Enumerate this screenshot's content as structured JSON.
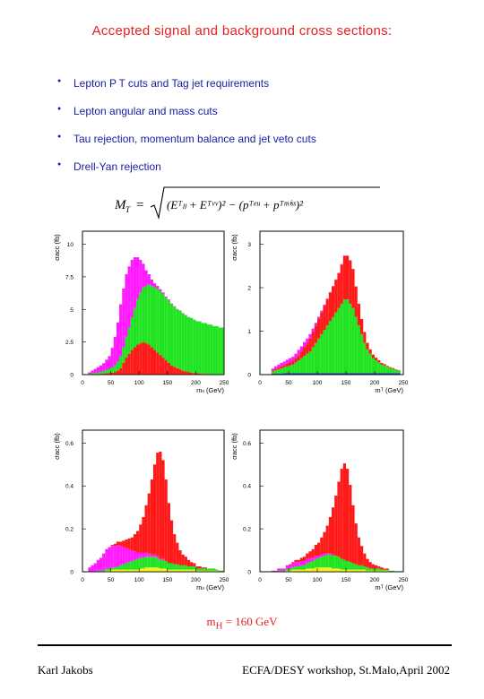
{
  "title": "Accepted signal and background cross sections:",
  "bullets": [
    "Lepton P T cuts and Tag jet requirements",
    "Lepton angular and mass cuts",
    "Tau rejection, momentum balance and jet veto cuts",
    "Drell-Yan rejection"
  ],
  "formula": {
    "lhs": "M",
    "lhs_sub": "T",
    "equals": "=",
    "body": "(Eᵀₗₗ + Eᵀᵛᵛ)² − (pᵀᵉᵘ + pᵀᵐⁱˢˢ)²"
  },
  "colors": {
    "signal": "#ff1a1a",
    "ww": "#22e322",
    "ttbar": "#ff1aff",
    "other1": "#f2f21a",
    "other2": "#1a1acc"
  },
  "chart_data": [
    {
      "type": "bar",
      "stacked": true,
      "xlabel": "mₗₗ (GeV)",
      "ylabel": "σacc (fb)",
      "xlim": [
        0,
        250
      ],
      "ylim": [
        0,
        11
      ],
      "xticks": [
        "0",
        "50",
        "100",
        "150",
        "200",
        "250"
      ],
      "yticks": [
        "0",
        "2.5",
        "5",
        "7.5",
        "10"
      ],
      "ytick_values": [
        0,
        2.5,
        5,
        7.5,
        10
      ],
      "bin_width": 5,
      "x_start": 10,
      "series": [
        {
          "color": "#ff1a1a",
          "values": [
            0.02,
            0.03,
            0.04,
            0.05,
            0.06,
            0.08,
            0.1,
            0.12,
            0.15,
            0.2,
            0.3,
            0.5,
            0.9,
            1.3,
            1.6,
            1.9,
            2.1,
            2.3,
            2.4,
            2.5,
            2.4,
            2.3,
            2.1,
            1.9,
            1.7,
            1.5,
            1.3,
            1.1,
            0.9,
            0.7,
            0.6,
            0.5,
            0.4,
            0.3,
            0.25,
            0.2,
            0.15,
            0.12,
            0.1,
            0.08,
            0.06,
            0.05,
            0.04,
            0.03,
            0.02,
            0.02,
            0.01,
            0.01
          ]
        },
        {
          "color": "#22e322",
          "values": [
            0.05,
            0.08,
            0.1,
            0.12,
            0.15,
            0.2,
            0.25,
            0.3,
            0.4,
            0.5,
            0.7,
            0.9,
            1.2,
            1.6,
            2.0,
            2.5,
            3.0,
            3.5,
            3.9,
            4.2,
            4.4,
            4.6,
            4.7,
            4.8,
            4.9,
            4.9,
            4.9,
            4.8,
            4.8,
            4.7,
            4.6,
            4.5,
            4.5,
            4.4,
            4.3,
            4.2,
            4.2,
            4.1,
            4.0,
            4.0,
            3.9,
            3.9,
            3.8,
            3.8,
            3.7,
            3.7,
            3.6,
            3.6
          ]
        },
        {
          "color": "#ff1aff",
          "values": [
            0.1,
            0.2,
            0.3,
            0.4,
            0.5,
            0.6,
            0.8,
            1.0,
            1.5,
            2.2,
            3.0,
            4.0,
            4.5,
            4.8,
            4.7,
            4.4,
            3.9,
            3.2,
            2.5,
            1.8,
            1.2,
            0.8,
            0.5,
            0.3,
            0.2,
            0.15,
            0.1,
            0.08,
            0.06,
            0.05,
            0.04,
            0.03,
            0.02,
            0.02,
            0.01,
            0.01,
            0,
            0,
            0,
            0,
            0,
            0,
            0,
            0,
            0,
            0,
            0,
            0
          ]
        }
      ]
    },
    {
      "type": "bar",
      "stacked": true,
      "xlabel": "mᵀ (GeV)",
      "ylabel": "σacc (fb)",
      "xlim": [
        0,
        250
      ],
      "ylim": [
        0,
        3.3
      ],
      "xticks": [
        "0",
        "50",
        "100",
        "150",
        "200",
        "250"
      ],
      "yticks": [
        "0",
        "1",
        "2",
        "3"
      ],
      "ytick_values": [
        0,
        1,
        2,
        3
      ],
      "bin_width": 5,
      "x_start": 20,
      "series": [
        {
          "color": "#1a1acc",
          "values": [
            0.02,
            0.02,
            0.02,
            0.02,
            0.03,
            0.03,
            0.03,
            0.03,
            0.03,
            0.03,
            0.03,
            0.03,
            0.03,
            0.03,
            0.03,
            0.03,
            0.03,
            0.03,
            0.03,
            0.03,
            0.03,
            0.03,
            0.03,
            0.03,
            0.03,
            0.03,
            0.03,
            0.03,
            0.03,
            0.03,
            0.03,
            0.03,
            0.03,
            0.03,
            0.03,
            0.03,
            0.03,
            0.03,
            0.03,
            0.03,
            0.03,
            0.03,
            0.03,
            0.03,
            0.03
          ]
        },
        {
          "color": "#22e322",
          "values": [
            0.05,
            0.08,
            0.1,
            0.12,
            0.14,
            0.16,
            0.18,
            0.2,
            0.25,
            0.3,
            0.35,
            0.4,
            0.45,
            0.5,
            0.6,
            0.7,
            0.8,
            0.9,
            1.0,
            1.1,
            1.2,
            1.3,
            1.4,
            1.5,
            1.6,
            1.7,
            1.7,
            1.6,
            1.5,
            1.3,
            1.1,
            0.9,
            0.7,
            0.55,
            0.45,
            0.35,
            0.3,
            0.25,
            0.2,
            0.18,
            0.15,
            0.12,
            0.1,
            0.08,
            0.06
          ]
        },
        {
          "color": "#ff1a1a",
          "values": [
            0.02,
            0.03,
            0.04,
            0.05,
            0.05,
            0.06,
            0.07,
            0.08,
            0.1,
            0.12,
            0.15,
            0.2,
            0.25,
            0.3,
            0.35,
            0.4,
            0.45,
            0.5,
            0.55,
            0.6,
            0.65,
            0.7,
            0.75,
            0.8,
            0.9,
            1.0,
            1.0,
            1.0,
            0.9,
            0.7,
            0.5,
            0.35,
            0.25,
            0.15,
            0.1,
            0.08,
            0.06,
            0.05,
            0.04,
            0.03,
            0.02,
            0.02,
            0.02,
            0.01,
            0.01
          ]
        },
        {
          "color": "#ff1aff",
          "values": [
            0.05,
            0.06,
            0.07,
            0.08,
            0.08,
            0.09,
            0.1,
            0.1,
            0.1,
            0.12,
            0.12,
            0.12,
            0.1,
            0.1,
            0.08,
            0.06,
            0.05,
            0.04,
            0.03,
            0.02,
            0.02,
            0.01,
            0.01,
            0.01,
            0.01,
            0.01,
            0.01,
            0,
            0,
            0,
            0,
            0,
            0,
            0,
            0,
            0,
            0,
            0,
            0,
            0,
            0,
            0,
            0,
            0,
            0
          ]
        }
      ]
    },
    {
      "type": "bar",
      "stacked": true,
      "xlabel": "mₗₗ (GeV)",
      "ylabel": "σacc (fb)",
      "xlim": [
        0,
        250
      ],
      "ylim": [
        0,
        0.66
      ],
      "xticks": [
        "0",
        "50",
        "100",
        "150",
        "200",
        "250"
      ],
      "yticks": [
        "0",
        "0.2",
        "0.4",
        "0.6"
      ],
      "ytick_values": [
        0,
        0.2,
        0.4,
        0.6
      ],
      "bin_width": 5,
      "x_start": 10,
      "series": [
        {
          "color": "#f2f21a",
          "values": [
            0,
            0,
            0,
            0,
            0,
            0,
            0.005,
            0.005,
            0.01,
            0.01,
            0.01,
            0.01,
            0.01,
            0.01,
            0.01,
            0.01,
            0.01,
            0.01,
            0.015,
            0.015,
            0.02,
            0.02,
            0.02,
            0.02,
            0.02,
            0.015,
            0.015,
            0.015,
            0.01,
            0.01,
            0.01,
            0.01,
            0.01,
            0.01,
            0.01,
            0.01,
            0.01,
            0.01,
            0.005,
            0.005,
            0.005,
            0.005,
            0.005,
            0.005,
            0.005,
            0.005,
            0,
            0
          ]
        },
        {
          "color": "#22e322",
          "values": [
            0,
            0,
            0,
            0.005,
            0.005,
            0.005,
            0.01,
            0.01,
            0.01,
            0.01,
            0.015,
            0.02,
            0.025,
            0.03,
            0.035,
            0.04,
            0.045,
            0.05,
            0.05,
            0.05,
            0.05,
            0.05,
            0.05,
            0.05,
            0.045,
            0.04,
            0.04,
            0.035,
            0.03,
            0.03,
            0.025,
            0.025,
            0.02,
            0.02,
            0.02,
            0.015,
            0.015,
            0.015,
            0.01,
            0.01,
            0.01,
            0.01,
            0.01,
            0.01,
            0.01,
            0.005,
            0.005,
            0.005
          ]
        },
        {
          "color": "#ff1aff",
          "values": [
            0.02,
            0.03,
            0.04,
            0.05,
            0.06,
            0.08,
            0.09,
            0.1,
            0.1,
            0.1,
            0.1,
            0.09,
            0.08,
            0.07,
            0.06,
            0.05,
            0.04,
            0.03,
            0.025,
            0.02,
            0.02,
            0.015,
            0.01,
            0.01,
            0.01,
            0.005,
            0.005,
            0,
            0,
            0,
            0,
            0,
            0,
            0,
            0,
            0,
            0,
            0,
            0,
            0,
            0,
            0,
            0,
            0,
            0,
            0,
            0,
            0
          ]
        },
        {
          "color": "#ff1a1a",
          "values": [
            0,
            0,
            0,
            0,
            0,
            0,
            0,
            0,
            0.005,
            0.01,
            0.015,
            0.02,
            0.03,
            0.04,
            0.05,
            0.06,
            0.08,
            0.1,
            0.13,
            0.17,
            0.22,
            0.28,
            0.35,
            0.42,
            0.48,
            0.5,
            0.46,
            0.38,
            0.28,
            0.2,
            0.14,
            0.1,
            0.07,
            0.05,
            0.04,
            0.03,
            0.02,
            0.015,
            0.01,
            0.01,
            0.005,
            0.005,
            0,
            0,
            0,
            0,
            0,
            0
          ]
        }
      ]
    },
    {
      "type": "bar",
      "stacked": true,
      "xlabel": "mᵀ (GeV)",
      "ylabel": "σacc (fb)",
      "xlim": [
        0,
        250
      ],
      "ylim": [
        0,
        0.66
      ],
      "xticks": [
        "0",
        "50",
        "100",
        "150",
        "200",
        "250"
      ],
      "yticks": [
        "0",
        "0.2",
        "0.4",
        "0.6"
      ],
      "ytick_values": [
        0,
        0.2,
        0.4,
        0.6
      ],
      "bin_width": 5,
      "x_start": 20,
      "series": [
        {
          "color": "#f2f21a",
          "values": [
            0,
            0,
            0,
            0,
            0,
            0.005,
            0.005,
            0.01,
            0.01,
            0.01,
            0.01,
            0.01,
            0.015,
            0.015,
            0.015,
            0.02,
            0.02,
            0.02,
            0.02,
            0.02,
            0.02,
            0.015,
            0.015,
            0.015,
            0.01,
            0.01,
            0.01,
            0.01,
            0.01,
            0.01,
            0.01,
            0.01,
            0.01,
            0.005,
            0.005,
            0.005,
            0.005,
            0.005,
            0.005,
            0.005,
            0.005,
            0,
            0,
            0,
            0
          ]
        },
        {
          "color": "#22e322",
          "values": [
            0,
            0,
            0.005,
            0.005,
            0.005,
            0.01,
            0.01,
            0.01,
            0.015,
            0.015,
            0.02,
            0.02,
            0.025,
            0.03,
            0.035,
            0.04,
            0.045,
            0.05,
            0.055,
            0.06,
            0.06,
            0.06,
            0.06,
            0.055,
            0.05,
            0.045,
            0.04,
            0.035,
            0.03,
            0.025,
            0.02,
            0.02,
            0.015,
            0.015,
            0.01,
            0.01,
            0.01,
            0.01,
            0.005,
            0.005,
            0.005,
            0.005,
            0.005,
            0,
            0
          ]
        },
        {
          "color": "#ff1aff",
          "values": [
            0.005,
            0.005,
            0.01,
            0.01,
            0.01,
            0.015,
            0.015,
            0.02,
            0.02,
            0.02,
            0.02,
            0.02,
            0.02,
            0.02,
            0.015,
            0.015,
            0.01,
            0.01,
            0.01,
            0.005,
            0.005,
            0.005,
            0,
            0,
            0,
            0,
            0,
            0,
            0,
            0,
            0,
            0,
            0,
            0,
            0,
            0,
            0,
            0,
            0,
            0,
            0,
            0,
            0,
            0,
            0
          ]
        },
        {
          "color": "#ff1a1a",
          "values": [
            0,
            0,
            0,
            0,
            0,
            0,
            0.005,
            0.005,
            0.01,
            0.01,
            0.015,
            0.02,
            0.025,
            0.03,
            0.04,
            0.05,
            0.06,
            0.08,
            0.1,
            0.13,
            0.17,
            0.22,
            0.28,
            0.35,
            0.42,
            0.45,
            0.43,
            0.36,
            0.27,
            0.19,
            0.13,
            0.09,
            0.06,
            0.04,
            0.03,
            0.02,
            0.015,
            0.01,
            0.01,
            0.005,
            0.005,
            0,
            0,
            0,
            0
          ]
        }
      ]
    }
  ],
  "mass_label": "m",
  "mass_label_sub": "H",
  "mass_value": " = 160 GeV",
  "footer": {
    "author": "Karl Jakobs",
    "venue": "ECFA/DESY workshop, St.Malo,April 2002"
  }
}
